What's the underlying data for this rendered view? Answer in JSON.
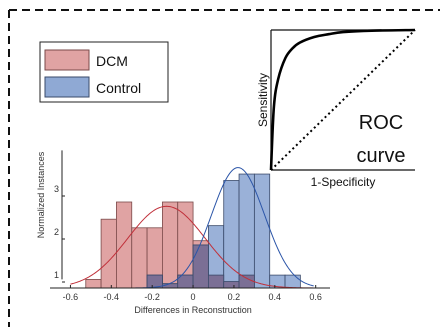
{
  "colors": {
    "dcm_fill": "#e0a3a3",
    "dcm_edge": "#7a4a4a",
    "dcm_curve": "#c0303a",
    "control_fill": "#8fa9d4",
    "control_edge": "#3a4a6a",
    "control_curve": "#2b55a8",
    "overlap_fill": "#7b6f95"
  },
  "chart_data": [
    {
      "type": "bar",
      "xlabel": "Differences in Reconstruction",
      "ylabel": "Normalized Instances",
      "xlim": [
        -0.7,
        0.67
      ],
      "ylim": [
        0,
        3.3
      ],
      "x_ticks": [
        "-0.6",
        "-0.4",
        "-0.2",
        "0",
        "0.2",
        "0.4",
        "0.6"
      ],
      "x_tick_values": [
        -0.6,
        -0.4,
        -0.2,
        0,
        0.2,
        0.4,
        0.6
      ],
      "y_ticks": [
        "1",
        "2",
        "3"
      ],
      "y_tick_values": [
        1,
        2,
        3
      ],
      "bin_width": 0.075,
      "legend": {
        "position": "top-left",
        "entries": [
          "DCM",
          "Control"
        ]
      },
      "series": [
        {
          "name": "DCM",
          "bin_starts": [
            -0.525,
            -0.45,
            -0.375,
            -0.3,
            -0.225,
            -0.15,
            -0.075,
            0.0,
            0.075,
            0.15,
            0.225
          ],
          "values": [
            0.2,
            1.6,
            2.0,
            1.4,
            1.4,
            2.0,
            2.0,
            1.1,
            0.3,
            0.15,
            0.3
          ],
          "fit_mean": -0.13,
          "fit_sd": 0.19,
          "fit_peak": 1.9
        },
        {
          "name": "Control",
          "bin_starts": [
            -0.225,
            -0.15,
            -0.075,
            0.0,
            0.075,
            0.15,
            0.225,
            0.3,
            0.375,
            0.45
          ],
          "values": [
            0.3,
            0.1,
            0.3,
            1.0,
            1.45,
            2.5,
            2.65,
            2.65,
            0.3,
            0.3
          ],
          "fit_mean": 0.22,
          "fit_sd": 0.13,
          "fit_peak": 2.8
        }
      ]
    },
    {
      "type": "line",
      "xlabel": "1-Specificity",
      "ylabel": "Sensitivity",
      "annotation_line1": "ROC",
      "annotation_line2": "curve",
      "xlim": [
        0,
        1
      ],
      "ylim": [
        0,
        1
      ],
      "series": [
        {
          "style": "solid",
          "x": [
            0,
            0.02,
            0.05,
            0.1,
            0.15,
            0.2,
            0.3,
            0.4,
            0.5,
            0.7,
            1.0
          ],
          "y": [
            0,
            0.45,
            0.65,
            0.8,
            0.87,
            0.91,
            0.95,
            0.97,
            0.985,
            0.995,
            1.0
          ]
        },
        {
          "style": "dotted",
          "x": [
            0,
            1
          ],
          "y": [
            0,
            1
          ]
        }
      ]
    }
  ]
}
